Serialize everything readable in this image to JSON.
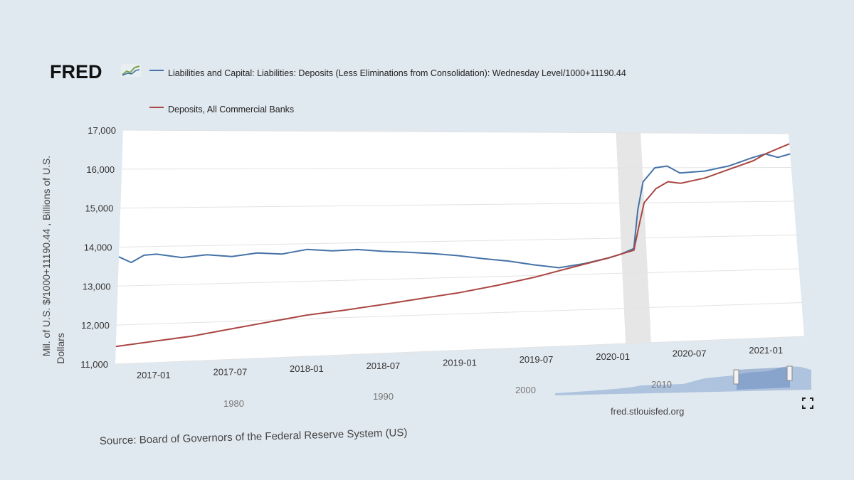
{
  "logo": {
    "text": "FRED",
    "icon": "fred-chart-icon"
  },
  "source": "Source: Board of Governors of the Federal Reserve System (US)",
  "site_url": "fred.stlouisfed.org",
  "fullscreen_icon": "expand-icon",
  "navigator_labels": [
    "1980",
    "1990",
    "2000",
    "2010"
  ],
  "chart_data": {
    "type": "line",
    "title": "",
    "ylabel_line1": "Mil. of U.S. $/1000+11190.44 , Billions of U.S.",
    "ylabel_line2": "Dollars",
    "xlabel": "",
    "x_range": [
      "2016-10",
      "2021-04"
    ],
    "ylim": [
      11000,
      17000
    ],
    "yticks": [
      11000,
      12000,
      13000,
      14000,
      15000,
      16000,
      17000
    ],
    "ytick_labels": [
      "11,000",
      "12,000",
      "13,000",
      "14,000",
      "15,000",
      "16,000",
      "17,000"
    ],
    "xticks": [
      "2017-01",
      "2017-07",
      "2018-01",
      "2018-07",
      "2019-01",
      "2019-07",
      "2020-01",
      "2020-07",
      "2021-01"
    ],
    "recession": {
      "start": "2020-02",
      "end": "2020-04"
    },
    "series": [
      {
        "name": "Liabilities and Capital: Liabilities: Deposits (Less Eliminations from Consolidation): Wednesday Level/1000+11190.44",
        "color": "#4572a7",
        "points": [
          [
            "2016-10",
            13750
          ],
          [
            "2016-11",
            13600
          ],
          [
            "2016-12",
            13780
          ],
          [
            "2017-01",
            13800
          ],
          [
            "2017-03",
            13700
          ],
          [
            "2017-05",
            13760
          ],
          [
            "2017-07",
            13700
          ],
          [
            "2017-09",
            13780
          ],
          [
            "2017-11",
            13740
          ],
          [
            "2018-01",
            13850
          ],
          [
            "2018-03",
            13800
          ],
          [
            "2018-05",
            13820
          ],
          [
            "2018-07",
            13760
          ],
          [
            "2018-09",
            13720
          ],
          [
            "2018-11",
            13670
          ],
          [
            "2019-01",
            13600
          ],
          [
            "2019-03",
            13500
          ],
          [
            "2019-05",
            13420
          ],
          [
            "2019-07",
            13300
          ],
          [
            "2019-09",
            13200
          ],
          [
            "2019-11",
            13300
          ],
          [
            "2020-01",
            13450
          ],
          [
            "2020-02",
            13550
          ],
          [
            "2020-03",
            13700
          ],
          [
            "2020-03-15",
            14800
          ],
          [
            "2020-04",
            15600
          ],
          [
            "2020-05",
            16000
          ],
          [
            "2020-06",
            16050
          ],
          [
            "2020-07",
            15850
          ],
          [
            "2020-09",
            15900
          ],
          [
            "2020-11",
            16050
          ],
          [
            "2021-01",
            16300
          ],
          [
            "2021-02",
            16400
          ],
          [
            "2021-03",
            16300
          ],
          [
            "2021-04",
            16400
          ]
        ]
      },
      {
        "name": "Deposits, All Commercial Banks",
        "color": "#aa4643",
        "points": [
          [
            "2016-10",
            11450
          ],
          [
            "2017-01",
            11550
          ],
          [
            "2017-04",
            11650
          ],
          [
            "2017-07",
            11800
          ],
          [
            "2017-10",
            11950
          ],
          [
            "2018-01",
            12100
          ],
          [
            "2018-04",
            12200
          ],
          [
            "2018-07",
            12320
          ],
          [
            "2018-10",
            12450
          ],
          [
            "2019-01",
            12580
          ],
          [
            "2019-04",
            12750
          ],
          [
            "2019-07",
            12950
          ],
          [
            "2019-10",
            13200
          ],
          [
            "2020-01",
            13450
          ],
          [
            "2020-02",
            13550
          ],
          [
            "2020-03",
            13650
          ],
          [
            "2020-03-15",
            14300
          ],
          [
            "2020-04",
            15000
          ],
          [
            "2020-05",
            15400
          ],
          [
            "2020-06",
            15600
          ],
          [
            "2020-07",
            15550
          ],
          [
            "2020-09",
            15700
          ],
          [
            "2020-11",
            15950
          ],
          [
            "2021-01",
            16200
          ],
          [
            "2021-02",
            16400
          ],
          [
            "2021-03",
            16550
          ],
          [
            "2021-04",
            16700
          ]
        ]
      }
    ]
  }
}
